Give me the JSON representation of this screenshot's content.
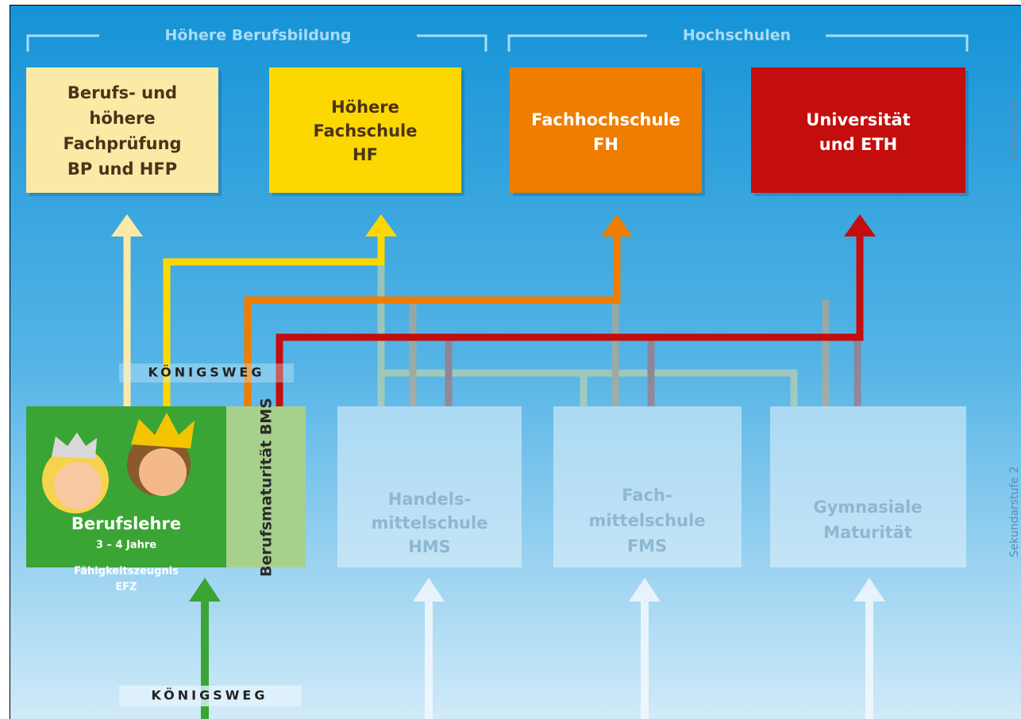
{
  "headers": [
    "Höhere Berufsbildung",
    "Hochschulen"
  ],
  "tertiary": [
    [
      "Berufs- und",
      "höhere",
      "Fachprüfung",
      "BP und HFP"
    ],
    [
      "Höhere",
      "Fachschule",
      "HF"
    ],
    [
      "Fachhochschule",
      "FH"
    ],
    [
      "Universität",
      "und ETH"
    ]
  ],
  "route_labels": [
    "KÖNIGSWEG",
    "KÖNIGSWEG"
  ],
  "apprenticeship": {
    "title": "Berufslehre",
    "duration": "3 – 4 Jahre",
    "certificate": [
      "Fähigkeitszeugnis",
      "EFZ"
    ],
    "bms": "Berufsmaturität BMS"
  },
  "secondary": [
    [
      "Handels-",
      "mittelschule",
      "HMS"
    ],
    [
      "Fach-",
      "mittelschule",
      "FMS"
    ],
    [
      "Gymnasiale",
      "Maturität"
    ]
  ],
  "stage_labels": [
    "Tertiärstufe",
    "Sekundarstufe 2"
  ]
}
